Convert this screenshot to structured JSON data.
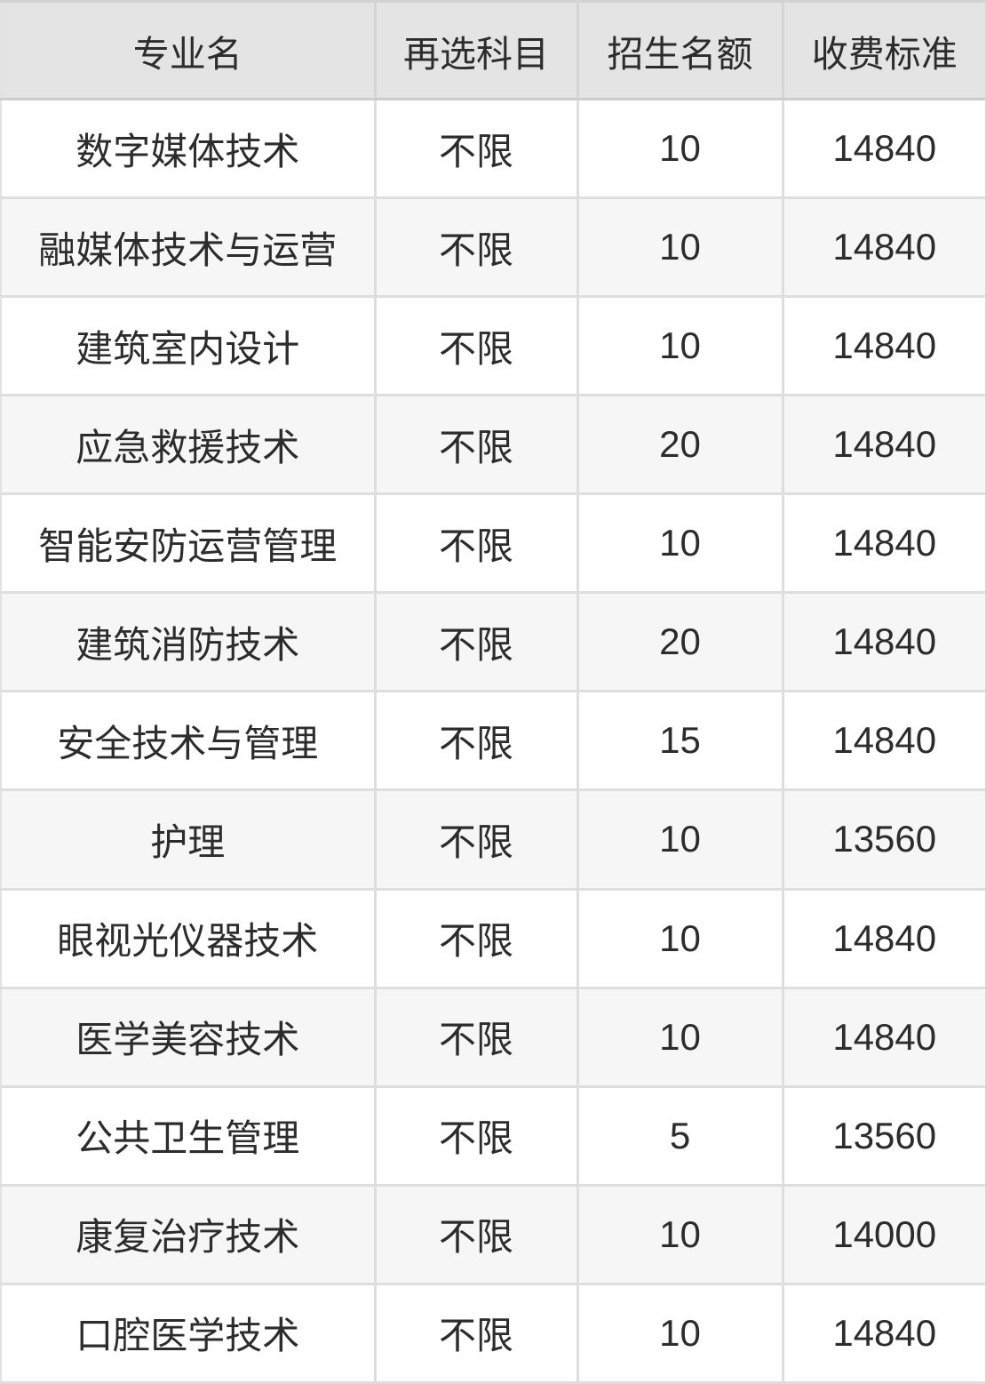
{
  "colors": {
    "header_bg": "#e4e4e4",
    "stripe_bg": "#f6f6f6",
    "row_bg": "#ffffff",
    "border": "#dedede",
    "header_border": "#cdcdcd",
    "outer_border": "#d2d2d2",
    "text": "#2c2c2c"
  },
  "table": {
    "columns": [
      "专业名",
      "再选科目",
      "招生名额",
      "收费标准"
    ],
    "rows": [
      {
        "major": "数字媒体技术",
        "subject": "不限",
        "quota": "10",
        "fee": "14840"
      },
      {
        "major": "融媒体技术与运营",
        "subject": "不限",
        "quota": "10",
        "fee": "14840"
      },
      {
        "major": "建筑室内设计",
        "subject": "不限",
        "quota": "10",
        "fee": "14840"
      },
      {
        "major": "应急救援技术",
        "subject": "不限",
        "quota": "20",
        "fee": "14840"
      },
      {
        "major": "智能安防运营管理",
        "subject": "不限",
        "quota": "10",
        "fee": "14840"
      },
      {
        "major": "建筑消防技术",
        "subject": "不限",
        "quota": "20",
        "fee": "14840"
      },
      {
        "major": "安全技术与管理",
        "subject": "不限",
        "quota": "15",
        "fee": "14840"
      },
      {
        "major": "护理",
        "subject": "不限",
        "quota": "10",
        "fee": "13560"
      },
      {
        "major": "眼视光仪器技术",
        "subject": "不限",
        "quota": "10",
        "fee": "14840"
      },
      {
        "major": "医学美容技术",
        "subject": "不限",
        "quota": "10",
        "fee": "14840"
      },
      {
        "major": "公共卫生管理",
        "subject": "不限",
        "quota": "5",
        "fee": "13560"
      },
      {
        "major": "康复治疗技术",
        "subject": "不限",
        "quota": "10",
        "fee": "14000"
      },
      {
        "major": "口腔医学技术",
        "subject": "不限",
        "quota": "10",
        "fee": "14840"
      }
    ]
  },
  "chart_data": {
    "type": "table",
    "title": "",
    "columns": [
      "专业名",
      "再选科目",
      "招生名额",
      "收费标准"
    ],
    "rows": [
      [
        "数字媒体技术",
        "不限",
        10,
        14840
      ],
      [
        "融媒体技术与运营",
        "不限",
        10,
        14840
      ],
      [
        "建筑室内设计",
        "不限",
        10,
        14840
      ],
      [
        "应急救援技术",
        "不限",
        20,
        14840
      ],
      [
        "智能安防运营管理",
        "不限",
        10,
        14840
      ],
      [
        "建筑消防技术",
        "不限",
        20,
        14840
      ],
      [
        "安全技术与管理",
        "不限",
        15,
        14840
      ],
      [
        "护理",
        "不限",
        10,
        13560
      ],
      [
        "眼视光仪器技术",
        "不限",
        10,
        14840
      ],
      [
        "医学美容技术",
        "不限",
        10,
        14840
      ],
      [
        "公共卫生管理",
        "不限",
        5,
        13560
      ],
      [
        "康复治疗技术",
        "不限",
        10,
        14000
      ],
      [
        "口腔医学技术",
        "不限",
        10,
        14840
      ]
    ],
    "layout_hints": {
      "header_background": "#e4e4e4",
      "zebra_striping": true,
      "grid": true,
      "cell_alignment": "center"
    }
  }
}
